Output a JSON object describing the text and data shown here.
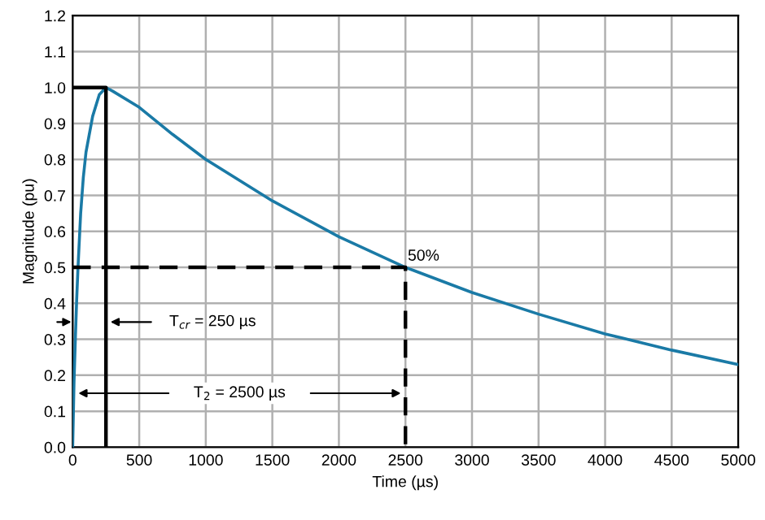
{
  "chart_data": {
    "type": "line",
    "xlabel": "Time (µs)",
    "ylabel": "Magnitude (pu)",
    "xlim": [
      0,
      5000
    ],
    "xticks": [
      0,
      500,
      1000,
      1500,
      2000,
      2500,
      3000,
      3500,
      4000,
      4500,
      5000
    ],
    "ylim": [
      0,
      1.2
    ],
    "yticks": [
      {
        "value": 0,
        "label": "0.0"
      },
      0.1,
      0.2,
      0.3,
      0.4,
      0.5,
      0.6,
      0.7,
      0.8,
      0.9,
      {
        "value": 1.0,
        "label": "1.0"
      },
      1.1,
      1.2
    ],
    "grid": true,
    "line_style": "solid",
    "series": [
      {
        "color": "#1a7aa6",
        "x": [
          0,
          10,
          20,
          30,
          40,
          60,
          80,
          100,
          150,
          200,
          250,
          300,
          500,
          750,
          1000,
          1500,
          2000,
          2500,
          3000,
          3500,
          4000,
          4500,
          5000
        ],
        "values": [
          0,
          0.18,
          0.3,
          0.41,
          0.5,
          0.65,
          0.75,
          0.82,
          0.92,
          0.98,
          1.0,
          0.99,
          0.945,
          0.87,
          0.8,
          0.685,
          0.585,
          0.5,
          0.43,
          0.37,
          0.315,
          0.27,
          0.23
        ]
      },
      {
        "color": "#000000",
        "x": [
          0,
          250,
          250
        ],
        "values": [
          1.0,
          1.0,
          0
        ]
      },
      {
        "color": "#000000",
        "line_style": "dashed",
        "x": [
          0,
          2500,
          2500
        ],
        "values": [
          0.5,
          0.5,
          0
        ]
      }
    ],
    "annotations": [
      "50%",
      "T$_{cr}$ = 250 µs",
      "T$_{2}$ = 2500 µs"
    ]
  }
}
